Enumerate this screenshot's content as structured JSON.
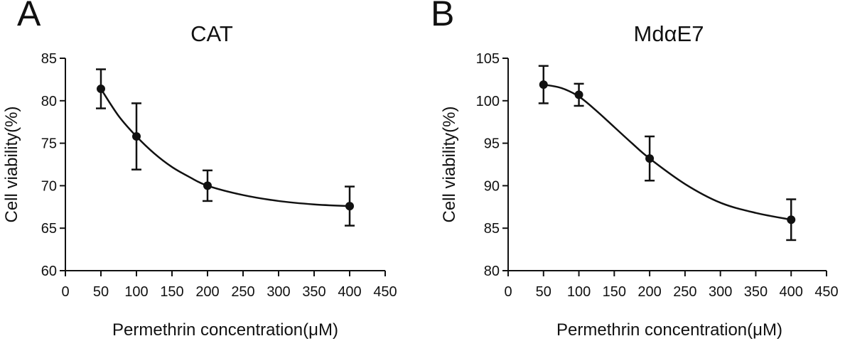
{
  "chart_data": [
    {
      "panel": "A",
      "type": "line",
      "title": "CAT",
      "xlabel": "Permethrin concentration(μM)",
      "ylabel": "Cell viability(%)",
      "xlim": [
        0,
        450
      ],
      "ylim": [
        60,
        85
      ],
      "xticks": [
        "0",
        "50",
        "100",
        "150",
        "200",
        "250",
        "300",
        "350",
        "400",
        "450"
      ],
      "yticks": [
        "60",
        "65",
        "70",
        "75",
        "80",
        "85"
      ],
      "x": [
        50,
        100,
        200,
        400
      ],
      "values": [
        81.4,
        75.8,
        70.0,
        67.6
      ],
      "error": [
        2.3,
        3.9,
        1.8,
        2.3
      ],
      "curve_x": [
        50,
        75,
        100,
        125,
        150,
        175,
        200,
        250,
        300,
        350,
        400
      ],
      "curve_y": [
        81.4,
        78.2,
        75.8,
        73.8,
        72.2,
        71.0,
        70.0,
        68.9,
        68.2,
        67.8,
        67.6
      ],
      "grid": false
    },
    {
      "panel": "B",
      "type": "line",
      "title": "MdαE7",
      "xlabel": "Permethrin concentration(μM)",
      "ylabel": "Cell viability(%)",
      "xlim": [
        0,
        450
      ],
      "ylim": [
        80,
        105
      ],
      "xticks": [
        "0",
        "50",
        "100",
        "150",
        "200",
        "250",
        "300",
        "350",
        "400",
        "450"
      ],
      "yticks": [
        "80",
        "85",
        "90",
        "95",
        "100",
        "105"
      ],
      "x": [
        50,
        100,
        200,
        400
      ],
      "values": [
        101.9,
        100.7,
        93.2,
        86.0
      ],
      "error": [
        2.2,
        1.3,
        2.6,
        2.4
      ],
      "curve_x": [
        50,
        75,
        100,
        125,
        150,
        175,
        200,
        250,
        300,
        350,
        400
      ],
      "curve_y": [
        101.9,
        101.5,
        100.5,
        98.8,
        96.9,
        95.0,
        93.2,
        90.2,
        88.0,
        86.8,
        86.0
      ],
      "grid": false
    }
  ]
}
